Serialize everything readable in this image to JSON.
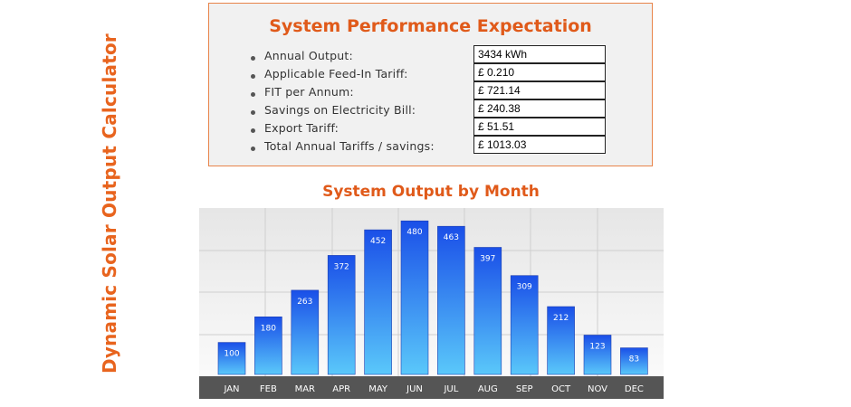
{
  "side_title": "Dynamic Solar Output Calculator",
  "performance": {
    "title": "System Performance Expectation",
    "rows": [
      {
        "label": "Annual Output:",
        "value": "3434 kWh"
      },
      {
        "label": "Applicable Feed-In Tariff:",
        "value": "£ 0.210"
      },
      {
        "label": "FIT per Annum:",
        "value": "£ 721.14"
      },
      {
        "label": "Savings on Electricity Bill:",
        "value": "£ 240.38"
      },
      {
        "label": "Export Tariff:",
        "value": "£ 51.51"
      },
      {
        "label": "Total Annual Tariffs / savings:",
        "value": "£ 1013.03"
      }
    ]
  },
  "colors": {
    "accent": "#e05a1a",
    "bar_top": "#1a4fe8",
    "bar_bottom": "#5ac8fa",
    "axis_band": "#555555"
  },
  "chart_data": {
    "type": "bar",
    "title": "System Output by Month",
    "categories": [
      "JAN",
      "FEB",
      "MAR",
      "APR",
      "MAY",
      "JUN",
      "JUL",
      "AUG",
      "SEP",
      "OCT",
      "NOV",
      "DEC"
    ],
    "values": [
      100,
      180,
      263,
      372,
      452,
      480,
      463,
      397,
      309,
      212,
      123,
      83
    ],
    "ylim": [
      0,
      520
    ],
    "grid": true,
    "legend": "none"
  }
}
